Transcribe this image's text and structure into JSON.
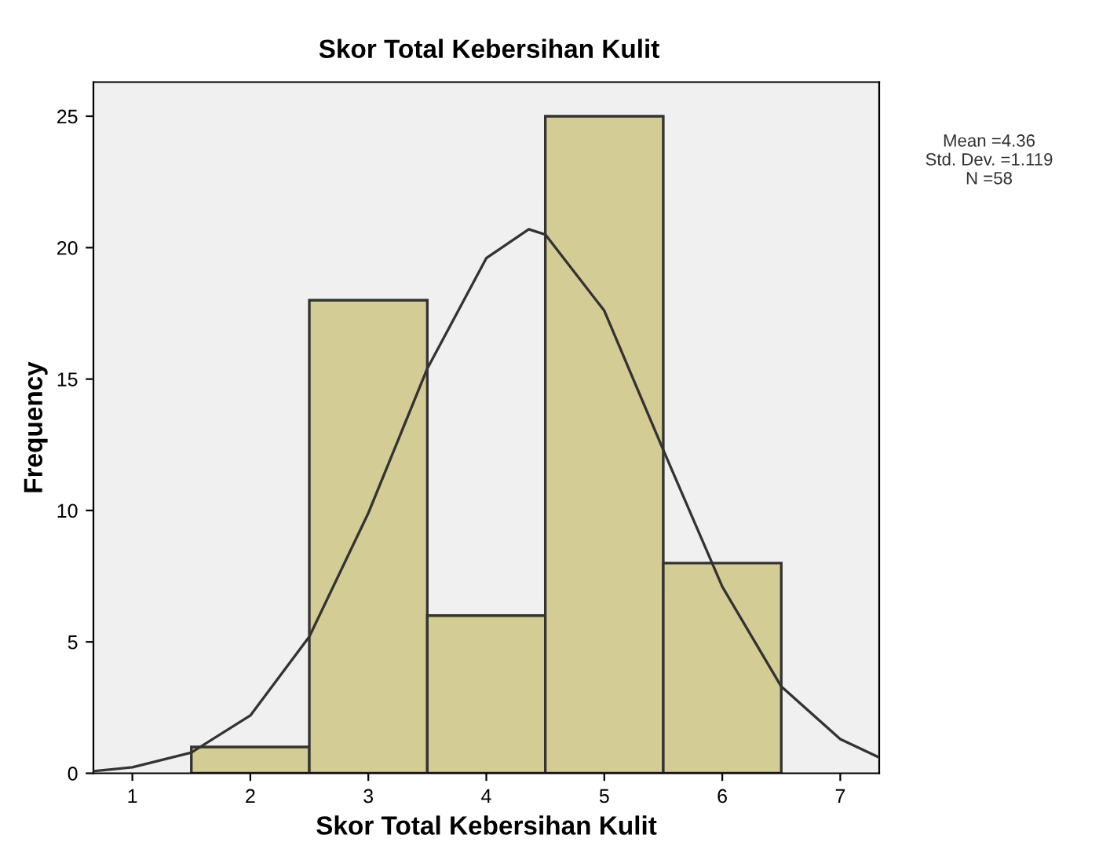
{
  "chart_data": {
    "type": "histogram",
    "title": "Skor Total Kebersihan Kulit",
    "xlabel": "Skor Total Kebersihan Kulit",
    "ylabel": "Frequency",
    "bins": [
      1.5,
      2.5,
      3.5,
      4.5,
      5.5,
      6.5
    ],
    "values": [
      1,
      18,
      6,
      25,
      8
    ],
    "color": "#d3cd95",
    "series": [
      {
        "type": "line",
        "color": "#333333",
        "x": [
          0.67,
          1,
          1.5,
          2,
          2.5,
          3,
          3.5,
          4,
          4.36,
          4.5,
          5,
          5.5,
          6,
          6.5,
          7,
          7.33
        ],
        "values": [
          0.08,
          0.23,
          0.79,
          2.2,
          5.2,
          9.9,
          15.4,
          19.6,
          20.7,
          20.5,
          17.6,
          12.3,
          7.1,
          3.3,
          1.3,
          0.6
        ]
      }
    ],
    "annotations": [
      "Mean =4.36\nStd. Dev. =1.119\nN =58"
    ],
    "xlim": [
      0.67,
      7.33
    ],
    "ylim": [
      0,
      26.3
    ],
    "xticks": [
      1,
      2,
      3,
      4,
      5,
      6,
      7
    ],
    "yticks": [
      0,
      5,
      10,
      15,
      20,
      25
    ],
    "grid": false,
    "legend": false
  }
}
